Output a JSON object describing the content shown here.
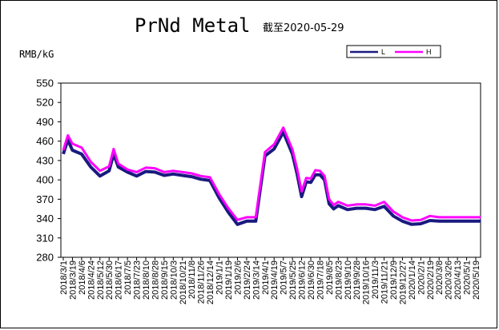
{
  "chart_data": {
    "type": "line",
    "title": "PrNd Metal",
    "subtitle": "截至2020-05-29",
    "ylabel": "RMB/kG",
    "xlabel": "",
    "ylim": [
      280,
      550
    ],
    "yticks": [
      280,
      310,
      340,
      370,
      400,
      430,
      460,
      490,
      520,
      550
    ],
    "grid": false,
    "legend_position": "top-right",
    "colors": {
      "L": "#1a1a80",
      "H": "#ff00ff"
    },
    "xtick_labels": [
      "2018/3/1",
      "2018/3/19",
      "2018/4/6",
      "2018/4/24",
      "2018/5/12",
      "2018/5/30",
      "2018/6/17",
      "2018/7/5",
      "2018/7/23",
      "2018/8/10",
      "2018/8/28",
      "2018/9/15",
      "2018/10/3",
      "2018/10/21",
      "2018/11/8",
      "2018/11/26",
      "2018/12/14",
      "2019/1/1",
      "2019/1/19",
      "2019/2/6",
      "2019/2/24",
      "2019/3/14",
      "2019/4/1",
      "2019/4/19",
      "2019/5/7",
      "2019/5/25",
      "2019/6/12",
      "2019/6/30",
      "2019/7/18",
      "2019/8/5",
      "2019/8/23",
      "2019/9/10",
      "2019/9/28",
      "2019/10/16",
      "2019/11/3",
      "2019/11/21",
      "2019/12/9",
      "2019/12/27",
      "2020/1/14",
      "2020/2/1",
      "2020/2/19",
      "2020/3/8",
      "2020/3/26",
      "2020/4/13",
      "2020/5/1",
      "2020/5/19"
    ],
    "x": [
      "2018/3/1",
      "2018/3/10",
      "2018/3/19",
      "2018/4/6",
      "2018/4/24",
      "2018/5/12",
      "2018/5/30",
      "2018/6/8",
      "2018/6/17",
      "2018/7/5",
      "2018/7/23",
      "2018/8/10",
      "2018/8/28",
      "2018/9/15",
      "2018/10/3",
      "2018/10/21",
      "2018/11/8",
      "2018/11/26",
      "2018/12/14",
      "2019/1/1",
      "2019/1/19",
      "2019/2/6",
      "2019/2/24",
      "2019/3/14",
      "2019/4/1",
      "2019/4/19",
      "2019/5/7",
      "2019/5/25",
      "2019/6/3",
      "2019/6/12",
      "2019/6/21",
      "2019/6/30",
      "2019/7/9",
      "2019/7/18",
      "2019/7/27",
      "2019/8/5",
      "2019/8/14",
      "2019/8/23",
      "2019/9/10",
      "2019/9/28",
      "2019/10/16",
      "2019/11/3",
      "2019/11/21",
      "2019/12/9",
      "2019/12/27",
      "2020/1/14",
      "2020/2/1",
      "2020/2/19",
      "2020/3/8",
      "2020/3/26",
      "2020/4/13",
      "2020/5/1",
      "2020/5/19",
      "2020/5/29"
    ],
    "series": [
      {
        "name": "L",
        "values": [
          440,
          462,
          446,
          440,
          420,
          406,
          414,
          440,
          420,
          412,
          406,
          413,
          412,
          407,
          409,
          407,
          405,
          401,
          399,
          372,
          350,
          331,
          336,
          336,
          437,
          448,
          474,
          440,
          410,
          374,
          397,
          396,
          408,
          408,
          400,
          363,
          355,
          360,
          354,
          356,
          356,
          354,
          359,
          344,
          336,
          331,
          332,
          337,
          336,
          336,
          336,
          336,
          336,
          336
        ]
      },
      {
        "name": "H",
        "values": [
          446,
          469,
          456,
          450,
          428,
          414,
          421,
          448,
          425,
          416,
          412,
          419,
          418,
          412,
          414,
          412,
          410,
          406,
          404,
          378,
          356,
          338,
          342,
          342,
          443,
          455,
          481,
          447,
          418,
          382,
          403,
          402,
          415,
          414,
          406,
          370,
          361,
          366,
          360,
          362,
          362,
          360,
          366,
          351,
          342,
          337,
          338,
          344,
          342,
          342,
          342,
          342,
          342,
          342
        ]
      }
    ]
  }
}
